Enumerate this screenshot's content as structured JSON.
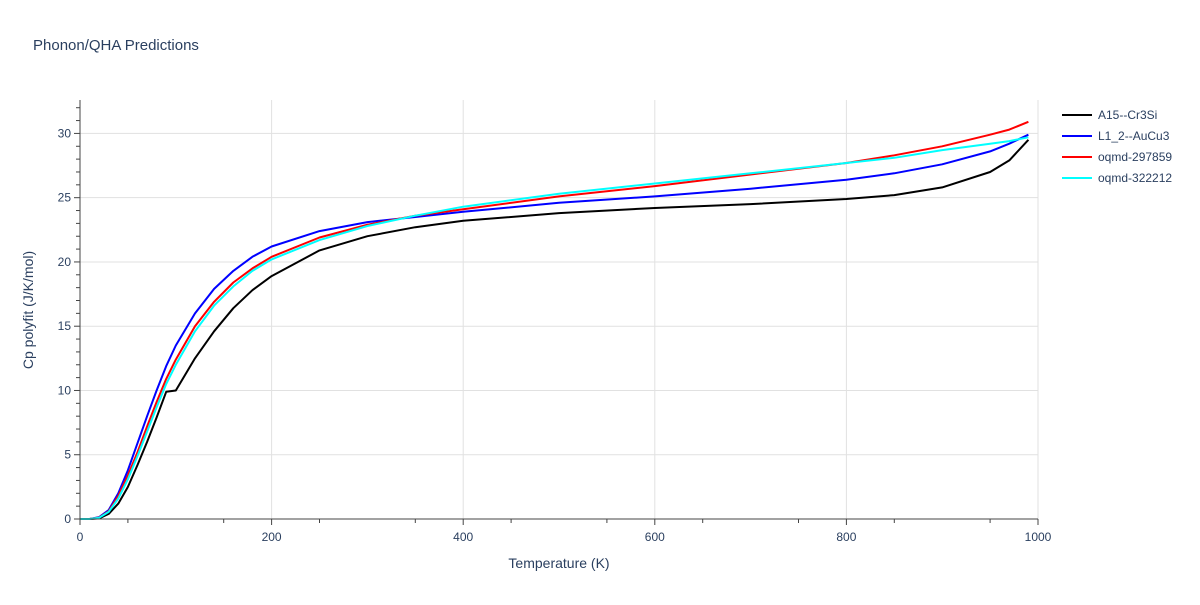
{
  "chart_data": {
    "type": "line",
    "title": "Phonon/QHA Predictions",
    "xlabel": "Temperature (K)",
    "ylabel": "Cp polyfit (J/K/mol)",
    "xlim": [
      0,
      1000
    ],
    "ylim": [
      0,
      32.6
    ],
    "xticks": [
      0,
      200,
      400,
      600,
      800,
      1000
    ],
    "yticks": [
      0,
      5,
      10,
      15,
      20,
      25,
      30
    ],
    "grid": true,
    "legend_position": "right",
    "x": [
      0,
      10,
      20,
      30,
      40,
      50,
      60,
      70,
      80,
      90,
      100,
      120,
      140,
      160,
      180,
      200,
      250,
      300,
      350,
      400,
      500,
      600,
      700,
      800,
      850,
      900,
      950,
      970,
      990
    ],
    "series": [
      {
        "name": "A15--Cr3Si",
        "color": "#000000",
        "values": [
          0,
          0,
          0.05,
          0.4,
          1.2,
          2.5,
          4.2,
          6.0,
          7.9,
          9.9,
          10.0,
          12.5,
          14.6,
          16.4,
          17.8,
          18.9,
          20.9,
          22.0,
          22.7,
          23.2,
          23.8,
          24.2,
          24.5,
          24.9,
          25.2,
          25.8,
          27.0,
          27.9,
          29.5
        ]
      },
      {
        "name": "L1_2--AuCu3",
        "color": "#0000ff",
        "values": [
          0,
          0,
          0.15,
          0.7,
          2.0,
          3.8,
          5.9,
          8.0,
          10.0,
          11.9,
          13.5,
          16.0,
          17.9,
          19.3,
          20.4,
          21.2,
          22.4,
          23.1,
          23.5,
          23.9,
          24.6,
          25.1,
          25.7,
          26.4,
          26.9,
          27.6,
          28.6,
          29.2,
          29.9
        ]
      },
      {
        "name": "oqmd-297859",
        "color": "#ff0000",
        "values": [
          0,
          0,
          0.12,
          0.6,
          1.8,
          3.4,
          5.2,
          7.2,
          9.1,
          10.9,
          12.4,
          15.0,
          16.9,
          18.4,
          19.5,
          20.4,
          21.9,
          22.9,
          23.6,
          24.1,
          25.1,
          25.9,
          26.8,
          27.7,
          28.3,
          29.0,
          29.9,
          30.3,
          30.9
        ]
      },
      {
        "name": "oqmd-322212",
        "color": "#00ffff",
        "values": [
          0,
          0,
          0.1,
          0.55,
          1.6,
          3.1,
          4.9,
          6.8,
          8.7,
          10.5,
          12.0,
          14.6,
          16.6,
          18.1,
          19.3,
          20.2,
          21.7,
          22.8,
          23.6,
          24.3,
          25.3,
          26.1,
          26.9,
          27.7,
          28.1,
          28.7,
          29.2,
          29.4,
          29.7
        ]
      }
    ]
  }
}
